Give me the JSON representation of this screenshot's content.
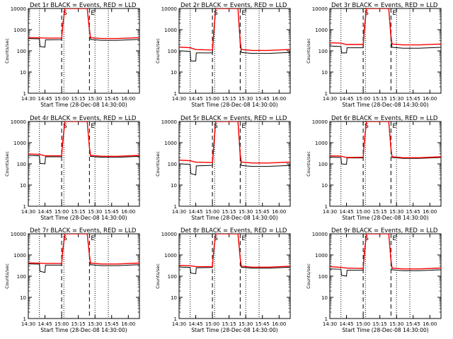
{
  "colors": {
    "events": "#000000",
    "lld": "#ff0000",
    "background": "#ffffff"
  },
  "shared": {
    "x_ticks": [
      "14:30",
      "14:45",
      "15:00",
      "15:15",
      "15:30",
      "15:45",
      "16:00"
    ],
    "y_ticks": [
      "1",
      "10",
      "100",
      "1000",
      "10000"
    ],
    "xlabel": "Start Time (28-Dec-08 14:30:00)",
    "ylabel": "Counts/sec",
    "markers": [
      "S",
      "E"
    ]
  },
  "chart_data": [
    {
      "type": "line",
      "title": "Det 1r BLACK = Events, RED = LLD",
      "ylim": [
        1,
        10000
      ],
      "yscale": "log",
      "series": [
        {
          "key": "events",
          "points": [
            [
              0,
              380
            ],
            [
              10,
              370
            ],
            [
              10.5,
              160
            ],
            [
              15,
              150
            ],
            [
              15.5,
              330
            ],
            [
              30,
              340
            ],
            [
              31,
              1500
            ],
            [
              33,
              10000
            ]
          ]
        },
        {
          "key": "lld",
          "points": [
            [
              0,
              420
            ],
            [
              10,
              410
            ],
            [
              15,
              400
            ],
            [
              30,
              400
            ],
            [
              31,
              1800
            ],
            [
              33,
              10000
            ]
          ]
        }
      ]
    },
    {
      "type": "line",
      "title": "Det 2r BLACK = Events, RED = LLD",
      "ylim": [
        1,
        10000
      ],
      "yscale": "log",
      "series": [
        {
          "key": "events",
          "points": [
            [
              0,
              100
            ],
            [
              10,
              95
            ],
            [
              10.5,
              33
            ],
            [
              15,
              33
            ],
            [
              15.5,
              80
            ],
            [
              30,
              80
            ],
            [
              31,
              400
            ],
            [
              33,
              10000
            ]
          ]
        },
        {
          "key": "lld",
          "points": [
            [
              0,
              150
            ],
            [
              10,
              140
            ],
            [
              15,
              115
            ],
            [
              30,
              110
            ],
            [
              31,
              600
            ],
            [
              33,
              10000
            ]
          ]
        }
      ]
    },
    {
      "type": "line",
      "title": "Det 3r BLACK = Events, RED = LLD",
      "ylim": [
        1,
        10000
      ],
      "yscale": "log",
      "series": [
        {
          "key": "events",
          "points": [
            [
              0,
              170
            ],
            [
              10,
              160
            ],
            [
              10.5,
              80
            ],
            [
              15,
              80
            ],
            [
              15.5,
              140
            ],
            [
              30,
              140
            ],
            [
              31,
              800
            ],
            [
              33,
              10000
            ]
          ]
        },
        {
          "key": "lld",
          "points": [
            [
              0,
              240
            ],
            [
              10,
              230
            ],
            [
              15,
              200
            ],
            [
              30,
              200
            ],
            [
              31,
              1200
            ],
            [
              33,
              10000
            ]
          ]
        }
      ]
    },
    {
      "type": "line",
      "title": "Det 4r BLACK = Events, RED = LLD",
      "ylim": [
        1,
        10000
      ],
      "yscale": "log",
      "series": [
        {
          "key": "events",
          "points": [
            [
              0,
              250
            ],
            [
              10,
              240
            ],
            [
              10.5,
              105
            ],
            [
              15,
              100
            ],
            [
              15.5,
              215
            ],
            [
              30,
              215
            ],
            [
              31,
              1000
            ],
            [
              33,
              10000
            ]
          ]
        },
        {
          "key": "lld",
          "points": [
            [
              0,
              290
            ],
            [
              10,
              280
            ],
            [
              15,
              240
            ],
            [
              30,
              240
            ],
            [
              31,
              1300
            ],
            [
              33,
              10000
            ]
          ]
        }
      ]
    },
    {
      "type": "line",
      "title": "Det 5r BLACK = Events, RED = LLD",
      "ylim": [
        1,
        10000
      ],
      "yscale": "log",
      "series": [
        {
          "key": "events",
          "points": [
            [
              0,
              100
            ],
            [
              10,
              95
            ],
            [
              10.5,
              35
            ],
            [
              15,
              30
            ],
            [
              15.5,
              80
            ],
            [
              30,
              85
            ],
            [
              31,
              400
            ],
            [
              33,
              10000
            ]
          ]
        },
        {
          "key": "lld",
          "points": [
            [
              0,
              150
            ],
            [
              10,
              140
            ],
            [
              15,
              120
            ],
            [
              30,
              115
            ],
            [
              31,
              600
            ],
            [
              33,
              10000
            ]
          ]
        }
      ]
    },
    {
      "type": "line",
      "title": "Det 6r BLACK = Events, RED = LLD",
      "ylim": [
        1,
        10000
      ],
      "yscale": "log",
      "series": [
        {
          "key": "events",
          "points": [
            [
              0,
              210
            ],
            [
              10,
              200
            ],
            [
              10.5,
              100
            ],
            [
              15,
              95
            ],
            [
              15.5,
              190
            ],
            [
              30,
              190
            ],
            [
              31,
              1000
            ],
            [
              33,
              10000
            ]
          ]
        },
        {
          "key": "lld",
          "points": [
            [
              0,
              240
            ],
            [
              10,
              230
            ],
            [
              15,
              200
            ],
            [
              30,
              205
            ],
            [
              31,
              1200
            ],
            [
              33,
              10000
            ]
          ]
        }
      ]
    },
    {
      "type": "line",
      "title": "Det 7r BLACK = Events, RED = LLD",
      "ylim": [
        1,
        10000
      ],
      "yscale": "log",
      "series": [
        {
          "key": "events",
          "points": [
            [
              0,
              380
            ],
            [
              10,
              370
            ],
            [
              10.5,
              170
            ],
            [
              15,
              150
            ],
            [
              15.5,
              330
            ],
            [
              30,
              330
            ],
            [
              31,
              1500
            ],
            [
              33,
              10000
            ]
          ]
        },
        {
          "key": "lld",
          "points": [
            [
              0,
              420
            ],
            [
              10,
              410
            ],
            [
              15,
              395
            ],
            [
              30,
              395
            ],
            [
              31,
              1800
            ],
            [
              33,
              10000
            ]
          ]
        }
      ]
    },
    {
      "type": "line",
      "title": "Det 8r BLACK = Events, RED = LLD",
      "ylim": [
        1,
        10000
      ],
      "yscale": "log",
      "series": [
        {
          "key": "events",
          "points": [
            [
              0,
              270
            ],
            [
              10,
              260
            ],
            [
              10.5,
              140
            ],
            [
              15,
              130
            ],
            [
              15.5,
              250
            ],
            [
              30,
              255
            ],
            [
              31,
              1200
            ],
            [
              33,
              10000
            ]
          ]
        },
        {
          "key": "lld",
          "points": [
            [
              0,
              320
            ],
            [
              10,
              310
            ],
            [
              15,
              285
            ],
            [
              30,
              280
            ],
            [
              31,
              1400
            ],
            [
              33,
              10000
            ]
          ]
        }
      ]
    },
    {
      "type": "line",
      "title": "Det 9r BLACK = Events, RED = LLD",
      "ylim": [
        1,
        10000
      ],
      "yscale": "log",
      "series": [
        {
          "key": "events",
          "points": [
            [
              0,
              220
            ],
            [
              10,
              210
            ],
            [
              10.5,
              110
            ],
            [
              15,
              100
            ],
            [
              15.5,
              190
            ],
            [
              30,
              190
            ],
            [
              31,
              900
            ],
            [
              33,
              10000
            ]
          ]
        },
        {
          "key": "lld",
          "points": [
            [
              0,
              280
            ],
            [
              10,
              260
            ],
            [
              15,
              240
            ],
            [
              30,
              230
            ],
            [
              31,
              1300
            ],
            [
              33,
              10000
            ]
          ]
        }
      ]
    }
  ]
}
